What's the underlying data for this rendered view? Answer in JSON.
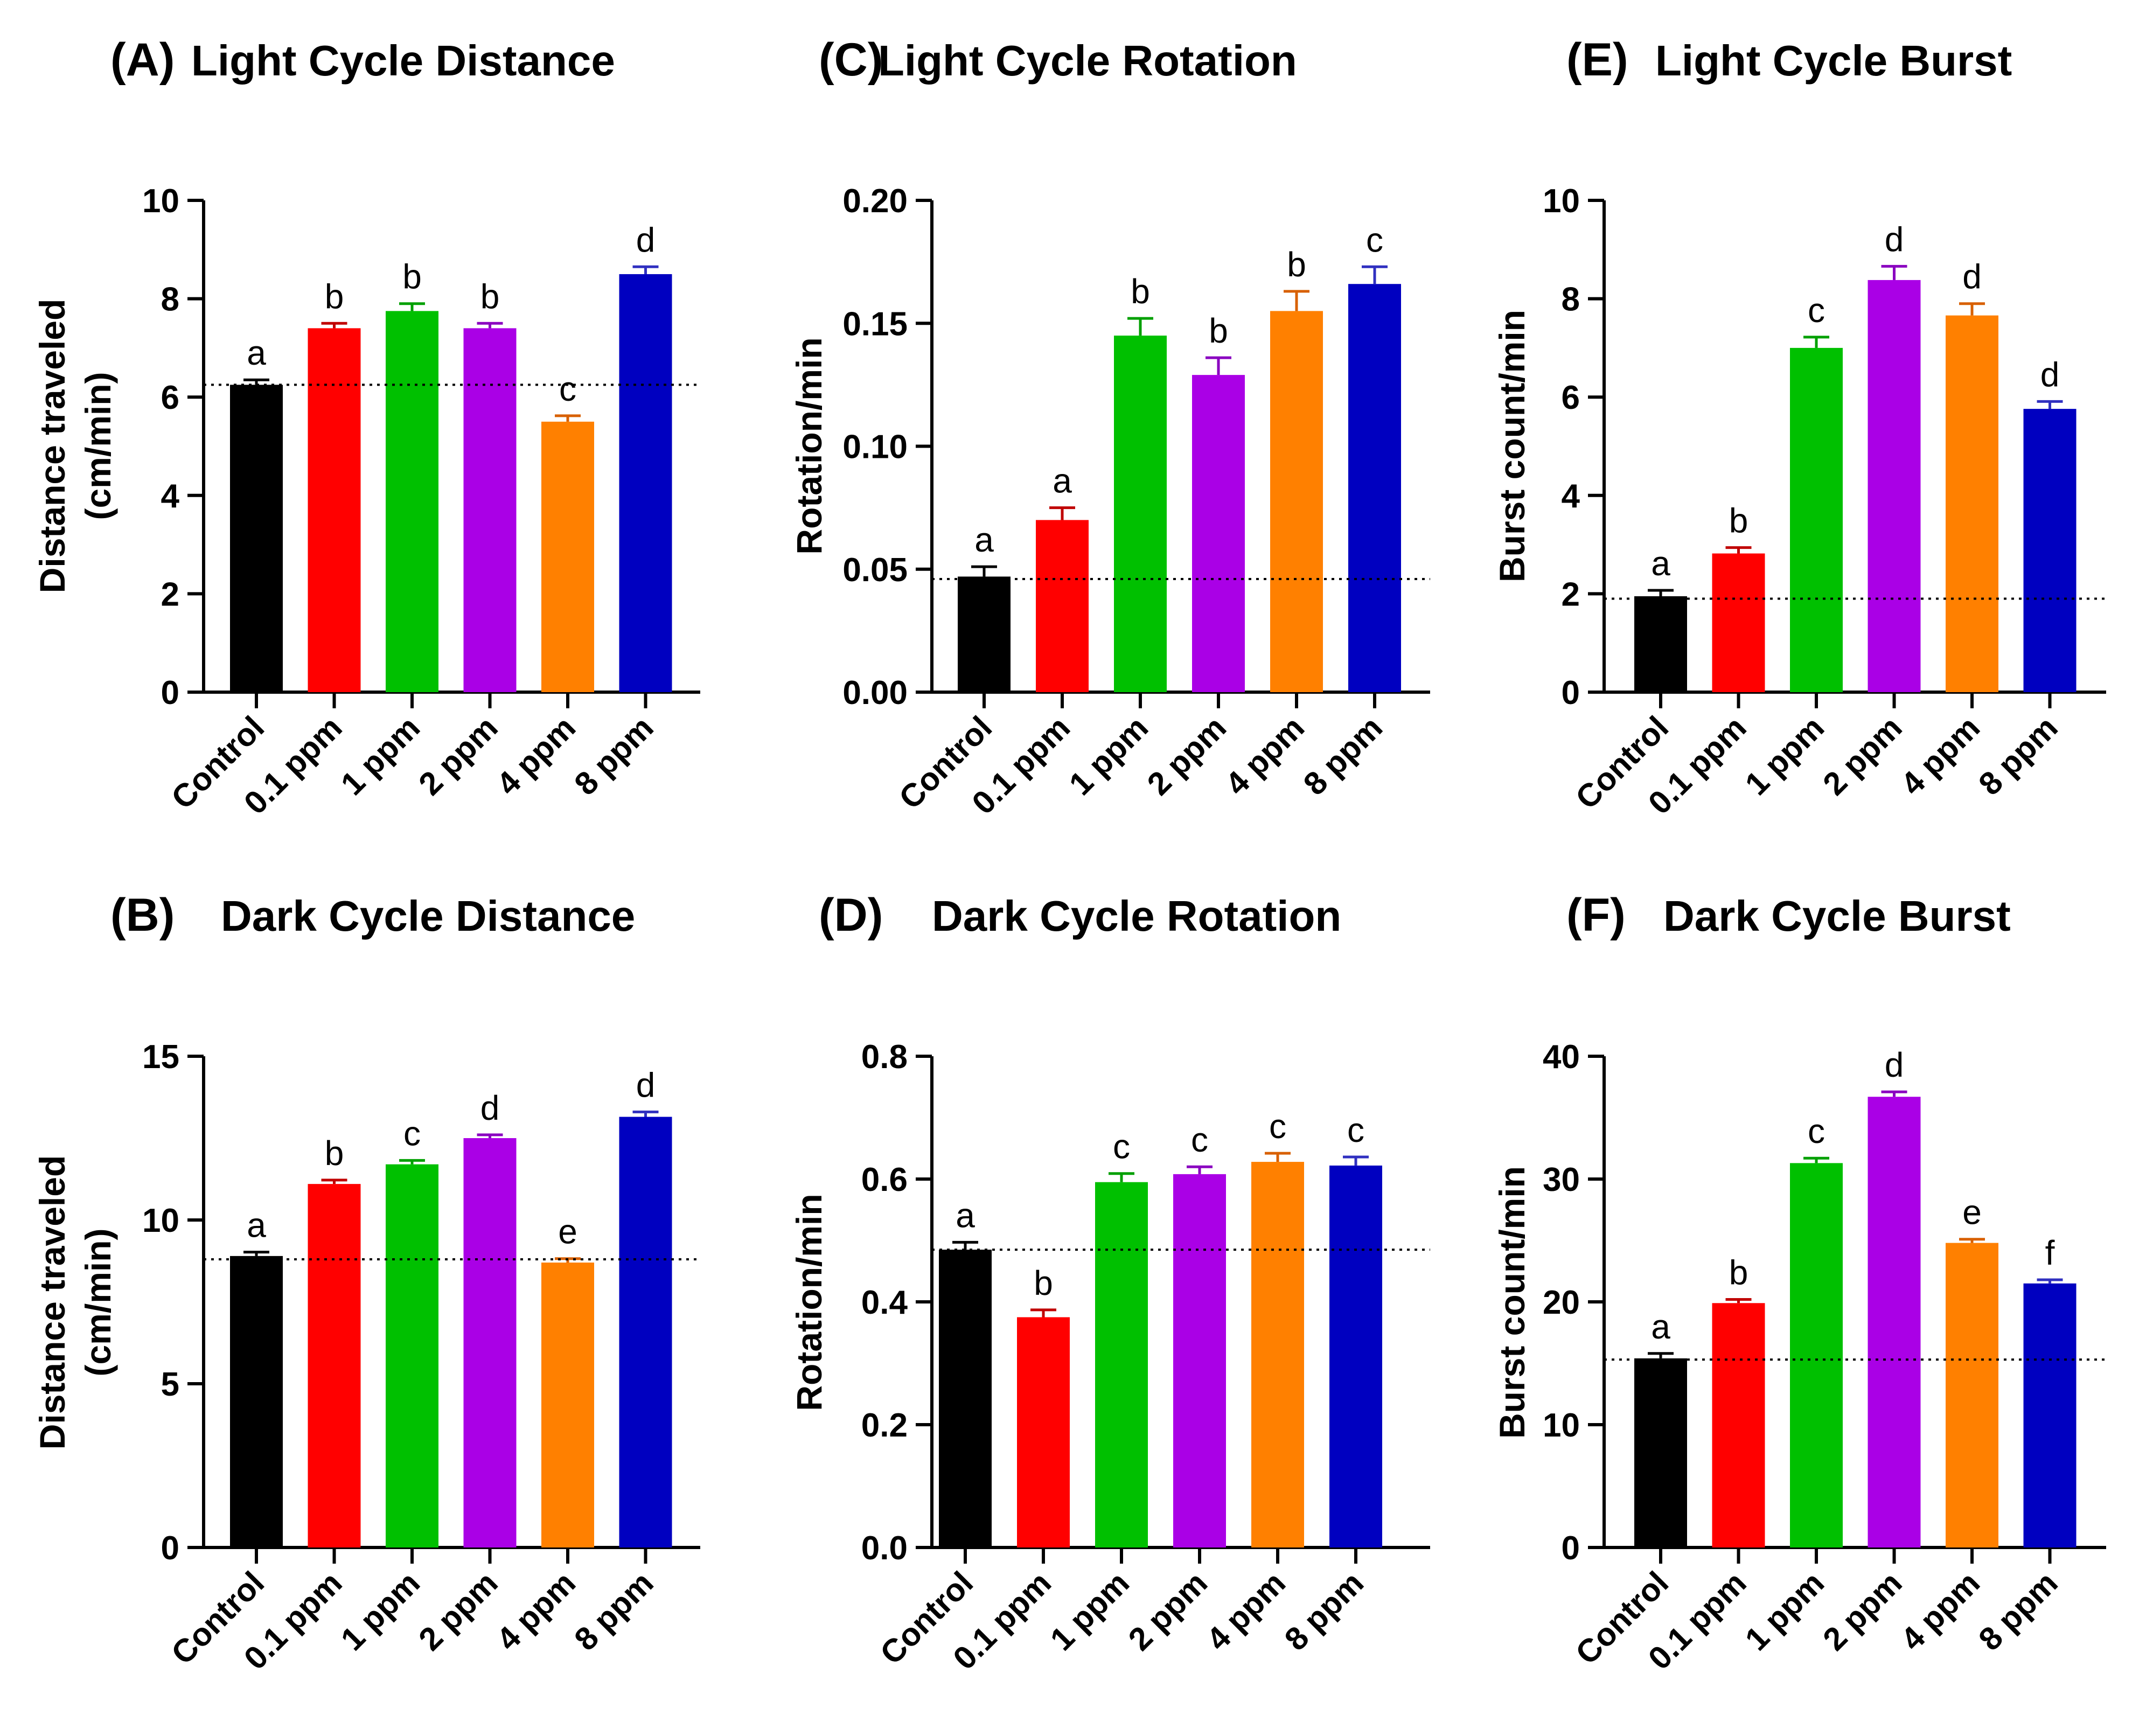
{
  "chart_data": [
    {
      "id": "A",
      "panel_label": "(A)",
      "type": "bar",
      "title": "Light Cycle Distance",
      "ylabel_line1": "Distance traveled",
      "ylabel_line2": "(cm/min)",
      "ylim": [
        0,
        10
      ],
      "yticks": [
        0,
        2,
        4,
        6,
        8,
        10
      ],
      "ytick_labels": [
        "0",
        "2",
        "4",
        "6",
        "8",
        "10"
      ],
      "categories": [
        "Control",
        "0.1 ppm",
        "1 ppm",
        "2 ppm",
        "4 ppm",
        "8 ppm"
      ],
      "values": [
        6.25,
        7.4,
        7.75,
        7.4,
        5.5,
        8.5
      ],
      "errors": [
        0.1,
        0.1,
        0.15,
        0.1,
        0.12,
        0.15
      ],
      "letters": [
        "a",
        "b",
        "b",
        "b",
        "c",
        "d"
      ],
      "reference_line": 6.25
    },
    {
      "id": "B",
      "panel_label": "(B)",
      "type": "bar",
      "title": "Dark Cycle Distance",
      "ylabel_line1": "Distance traveled",
      "ylabel_line2": "(cm/min)",
      "ylim": [
        0,
        15
      ],
      "yticks": [
        0,
        5,
        10,
        15
      ],
      "ytick_labels": [
        "0",
        "5",
        "10",
        "15"
      ],
      "categories": [
        "Control",
        "0.1 ppm",
        "1 ppm",
        "2 ppm",
        "4 ppm",
        "8 ppm"
      ],
      "values": [
        8.9,
        11.1,
        11.7,
        12.5,
        8.7,
        13.15
      ],
      "errors": [
        0.12,
        0.12,
        0.12,
        0.1,
        0.12,
        0.15
      ],
      "letters": [
        "a",
        "b",
        "c",
        "d",
        "e",
        "d"
      ],
      "reference_line": 8.8
    },
    {
      "id": "C",
      "panel_label": "(C)",
      "type": "bar",
      "title": "Light Cycle Rotation",
      "ylabel_line1": "Rotation/min",
      "ylabel_line2": "",
      "ylim": [
        0,
        0.2
      ],
      "yticks": [
        0,
        0.05,
        0.1,
        0.15,
        0.2
      ],
      "ytick_labels": [
        "0.00",
        "0.05",
        "0.10",
        "0.15",
        "0.20"
      ],
      "categories": [
        "Control",
        "0.1 ppm",
        "1 ppm",
        "2 ppm",
        "4 ppm",
        "8 ppm"
      ],
      "values": [
        0.047,
        0.07,
        0.145,
        0.129,
        0.155,
        0.166
      ],
      "errors": [
        0.004,
        0.005,
        0.007,
        0.007,
        0.008,
        0.007
      ],
      "letters": [
        "a",
        "a",
        "b",
        "b",
        "b",
        "c"
      ],
      "reference_line": 0.046
    },
    {
      "id": "D",
      "panel_label": "(D)",
      "type": "bar",
      "title": "Dark Cycle Rotation",
      "ylabel_line1": "Rotation/min",
      "ylabel_line2": "",
      "ylim": [
        0,
        0.8
      ],
      "yticks": [
        0,
        0.2,
        0.4,
        0.6,
        0.8
      ],
      "ytick_labels": [
        "0.0",
        "0.2",
        "0.4",
        "0.6",
        "0.8"
      ],
      "categories": [
        "Control",
        "0.1 ppm",
        "1 ppm",
        "2 ppm",
        "4 ppm",
        "8 ppm"
      ],
      "values": [
        0.485,
        0.375,
        0.595,
        0.608,
        0.628,
        0.622
      ],
      "errors": [
        0.012,
        0.012,
        0.014,
        0.012,
        0.014,
        0.014
      ],
      "letters": [
        "a",
        "b",
        "c",
        "c",
        "c",
        "c"
      ],
      "reference_line": 0.485
    },
    {
      "id": "E",
      "panel_label": "(E)",
      "type": "bar",
      "title": "Light Cycle Burst",
      "ylabel_line1": "Burst count/min",
      "ylabel_line2": "",
      "ylim": [
        0,
        10
      ],
      "yticks": [
        0,
        2,
        4,
        6,
        8,
        10
      ],
      "ytick_labels": [
        "0",
        "2",
        "4",
        "6",
        "8",
        "10"
      ],
      "categories": [
        "Control",
        "0.1 ppm",
        "1 ppm",
        "2 ppm",
        "4 ppm",
        "8 ppm"
      ],
      "values": [
        1.95,
        2.82,
        7.0,
        8.38,
        7.66,
        5.76
      ],
      "errors": [
        0.12,
        0.12,
        0.22,
        0.28,
        0.24,
        0.15
      ],
      "letters": [
        "a",
        "b",
        "c",
        "d",
        "d",
        "d"
      ],
      "reference_line": 1.9
    },
    {
      "id": "F",
      "panel_label": "(F)",
      "type": "bar",
      "title": "Dark Cycle Burst",
      "ylabel_line1": "Burst count/min",
      "ylabel_line2": "",
      "ylim": [
        0,
        40
      ],
      "yticks": [
        0,
        10,
        20,
        30,
        40
      ],
      "ytick_labels": [
        "0",
        "10",
        "20",
        "30",
        "40"
      ],
      "categories": [
        "Control",
        "0.1 ppm",
        "1 ppm",
        "2 ppm",
        "4 ppm",
        "8 ppm"
      ],
      "values": [
        15.4,
        19.9,
        31.3,
        36.7,
        24.8,
        21.5
      ],
      "errors": [
        0.4,
        0.3,
        0.4,
        0.4,
        0.3,
        0.3
      ],
      "letters": [
        "a",
        "b",
        "c",
        "d",
        "e",
        "f"
      ],
      "reference_line": 15.3
    }
  ],
  "colors": {
    "bars": [
      "#000000",
      "#ff0000",
      "#00c000",
      "#aa00e6",
      "#ff8000",
      "#0000c0"
    ],
    "error_bars": [
      "#000000",
      "#c00000",
      "#00a000",
      "#8a00c0",
      "#d86000",
      "#3030c0"
    ],
    "axis": "#000000",
    "reference_line": "#000000"
  }
}
